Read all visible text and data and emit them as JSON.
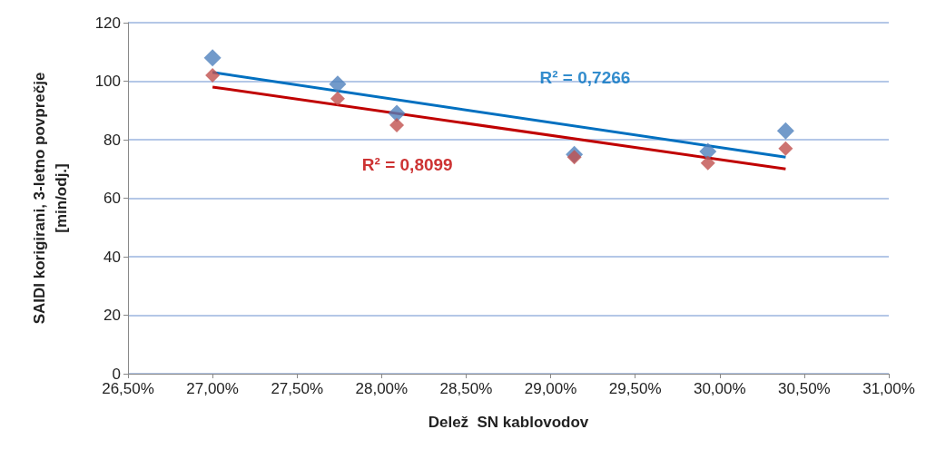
{
  "chart_data": {
    "type": "scatter",
    "xlabel": "Delež  SN kablovodov",
    "ylabel": "SAIDI korigirani, 3-letno povprečje\n[min/odj.]",
    "grid": "y",
    "xlim": [
      26.5,
      31
    ],
    "xticks": [
      {
        "value": 26.5,
        "label": "26,50%"
      },
      {
        "value": 27,
        "label": "27,00%"
      },
      {
        "value": 27.5,
        "label": "27,50%"
      },
      {
        "value": 28,
        "label": "28,00%"
      },
      {
        "value": 28.5,
        "label": "28,50%"
      },
      {
        "value": 29,
        "label": "29,00%"
      },
      {
        "value": 29.5,
        "label": "29,50%"
      },
      {
        "value": 30,
        "label": "30,00%"
      },
      {
        "value": 30.5,
        "label": "30,50%"
      },
      {
        "value": 31,
        "label": "31,00%"
      }
    ],
    "ylim": [
      0,
      120
    ],
    "yticks": [
      0,
      20,
      40,
      60,
      80,
      100,
      120
    ],
    "series": [
      {
        "marker": "diamond",
        "color": "#4f81bd",
        "x": [
          27.0,
          27.74,
          28.09,
          29.14,
          29.93,
          30.39
        ],
        "values": [
          108,
          99,
          89,
          75,
          76,
          83
        ]
      },
      {
        "marker": "diamond",
        "color": "#c0504d",
        "x": [
          27.0,
          27.74,
          28.09,
          29.14,
          29.93,
          30.39
        ],
        "values": [
          102,
          94,
          85,
          74,
          72,
          77
        ]
      },
      {
        "type": "line",
        "marker": "none",
        "color": "#0070c0",
        "x": [
          27.0,
          30.39
        ],
        "values": [
          103,
          74
        ]
      },
      {
        "type": "line",
        "marker": "none",
        "color": "#c00000",
        "x": [
          27.0,
          30.39
        ],
        "values": [
          98,
          70
        ]
      }
    ],
    "annotations": [
      "R² = 0,7266",
      "R² = 0,8099"
    ]
  }
}
